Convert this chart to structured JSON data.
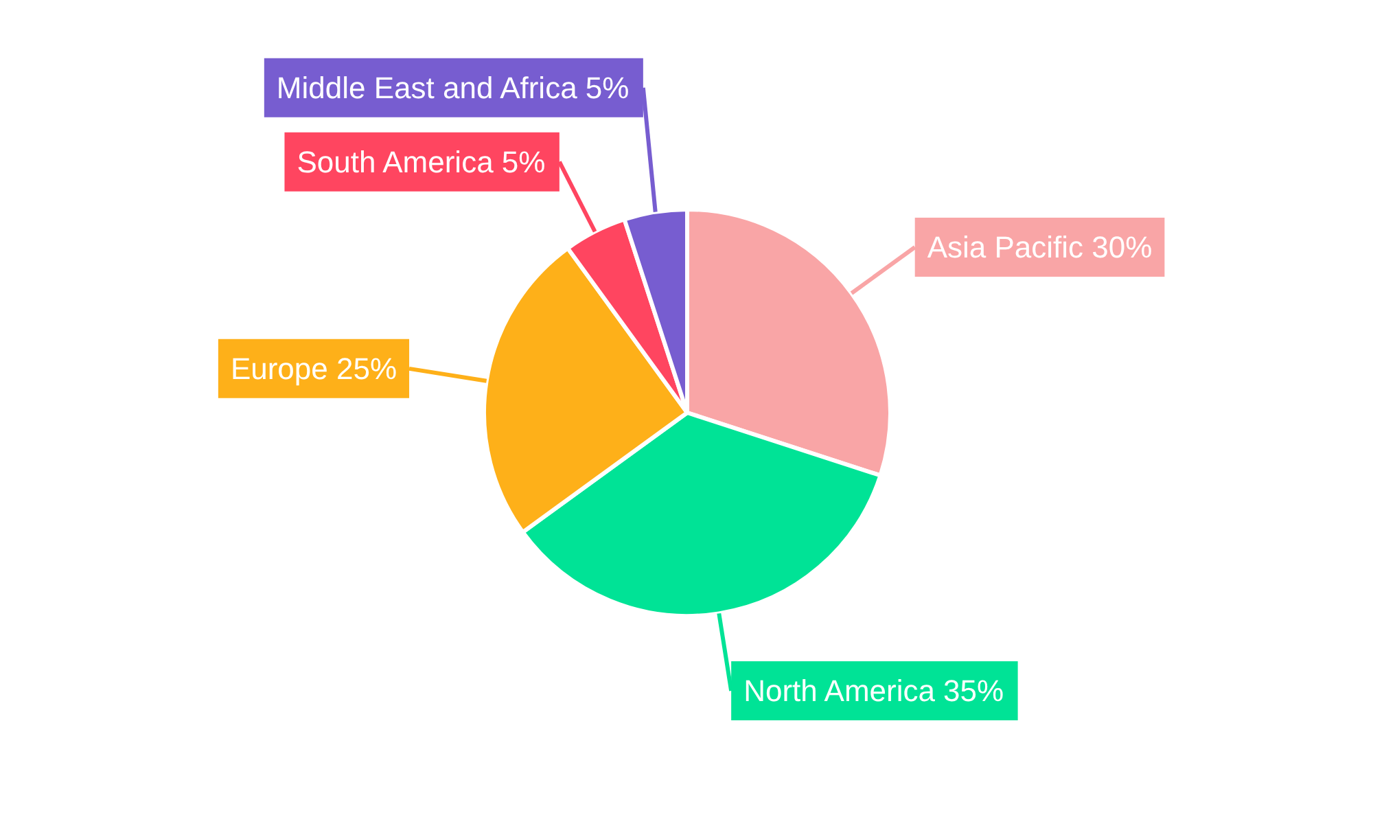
{
  "chart_data": {
    "type": "pie",
    "categories": [
      "Asia Pacific",
      "North America",
      "Europe",
      "South America",
      "Middle East and Africa"
    ],
    "values": [
      30,
      35,
      25,
      5,
      5
    ],
    "value_labels": [
      "30%",
      "35%",
      "25%",
      "5%",
      "5%"
    ],
    "colors": [
      "#f9a5a6",
      "#00e396",
      "#feb019",
      "#ff4560",
      "#775dd0"
    ]
  }
}
